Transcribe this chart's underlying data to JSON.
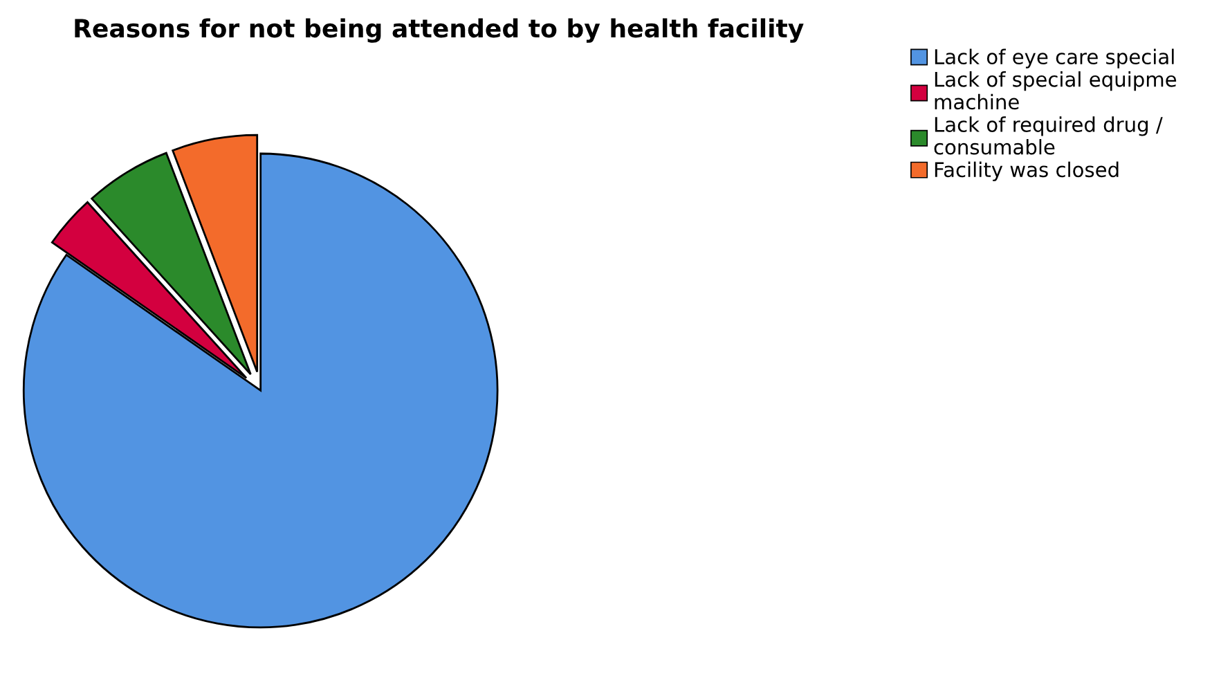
{
  "chart_data": {
    "type": "pie",
    "title": "Reasons for not being attended to by health facility",
    "categories": [
      "Lack of eye care special",
      "Lack of special equipme\nmachine",
      "Lack of required drug /\nconsumable",
      "Facility was closed"
    ],
    "values": [
      84.7,
      3.6,
      5.9,
      5.8
    ],
    "colors": [
      "#5294e2",
      "#d3003f",
      "#2b8a2b",
      "#f36b2b"
    ],
    "legend": "top right"
  }
}
